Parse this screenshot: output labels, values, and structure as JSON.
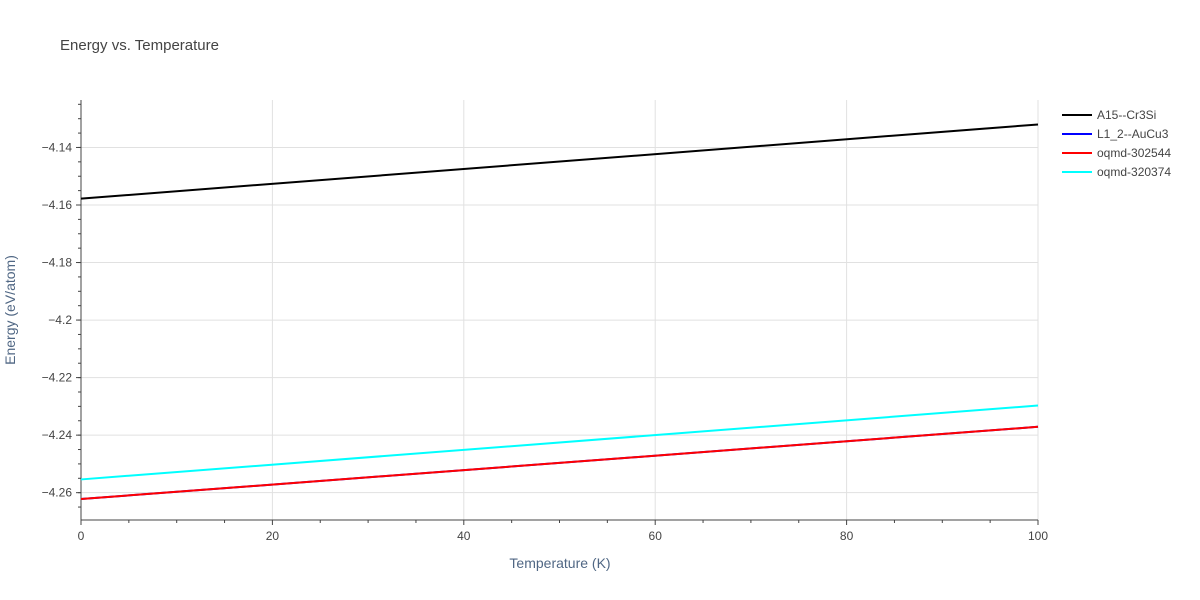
{
  "chart_data": {
    "type": "line",
    "title": "Energy vs. Temperature",
    "xlabel": "Temperature (K)",
    "ylabel": "Energy (eV/atom)",
    "xlim": [
      0,
      100
    ],
    "ylim": [
      -4.2695,
      -4.1235
    ],
    "x_ticks": [
      0,
      20,
      40,
      60,
      80,
      100
    ],
    "x_tick_labels": [
      "0",
      "20",
      "40",
      "60",
      "80",
      "100"
    ],
    "y_ticks": [
      -4.14,
      -4.16,
      -4.18,
      -4.2,
      -4.22,
      -4.24,
      -4.26
    ],
    "y_tick_labels": [
      "−4.14",
      "−4.16",
      "−4.18",
      "−4.2",
      "−4.22",
      "−4.24",
      "−4.26"
    ],
    "grid": true,
    "legend_position": "top-right",
    "series": [
      {
        "name": "A15--Cr3Si",
        "color": "#000000",
        "x": [
          0,
          100
        ],
        "y": [
          -4.1578,
          -4.132
        ]
      },
      {
        "name": "L1_2--AuCu3",
        "color": "#0000ff",
        "x": [
          0,
          100
        ],
        "y": [
          -4.2622,
          -4.2371
        ]
      },
      {
        "name": "oqmd-302544",
        "color": "#ff0000",
        "x": [
          0,
          100
        ],
        "y": [
          -4.2622,
          -4.2371
        ]
      },
      {
        "name": "oqmd-320374",
        "color": "#00ffff",
        "x": [
          0,
          100
        ],
        "y": [
          -4.2554,
          -4.2297
        ]
      }
    ]
  }
}
